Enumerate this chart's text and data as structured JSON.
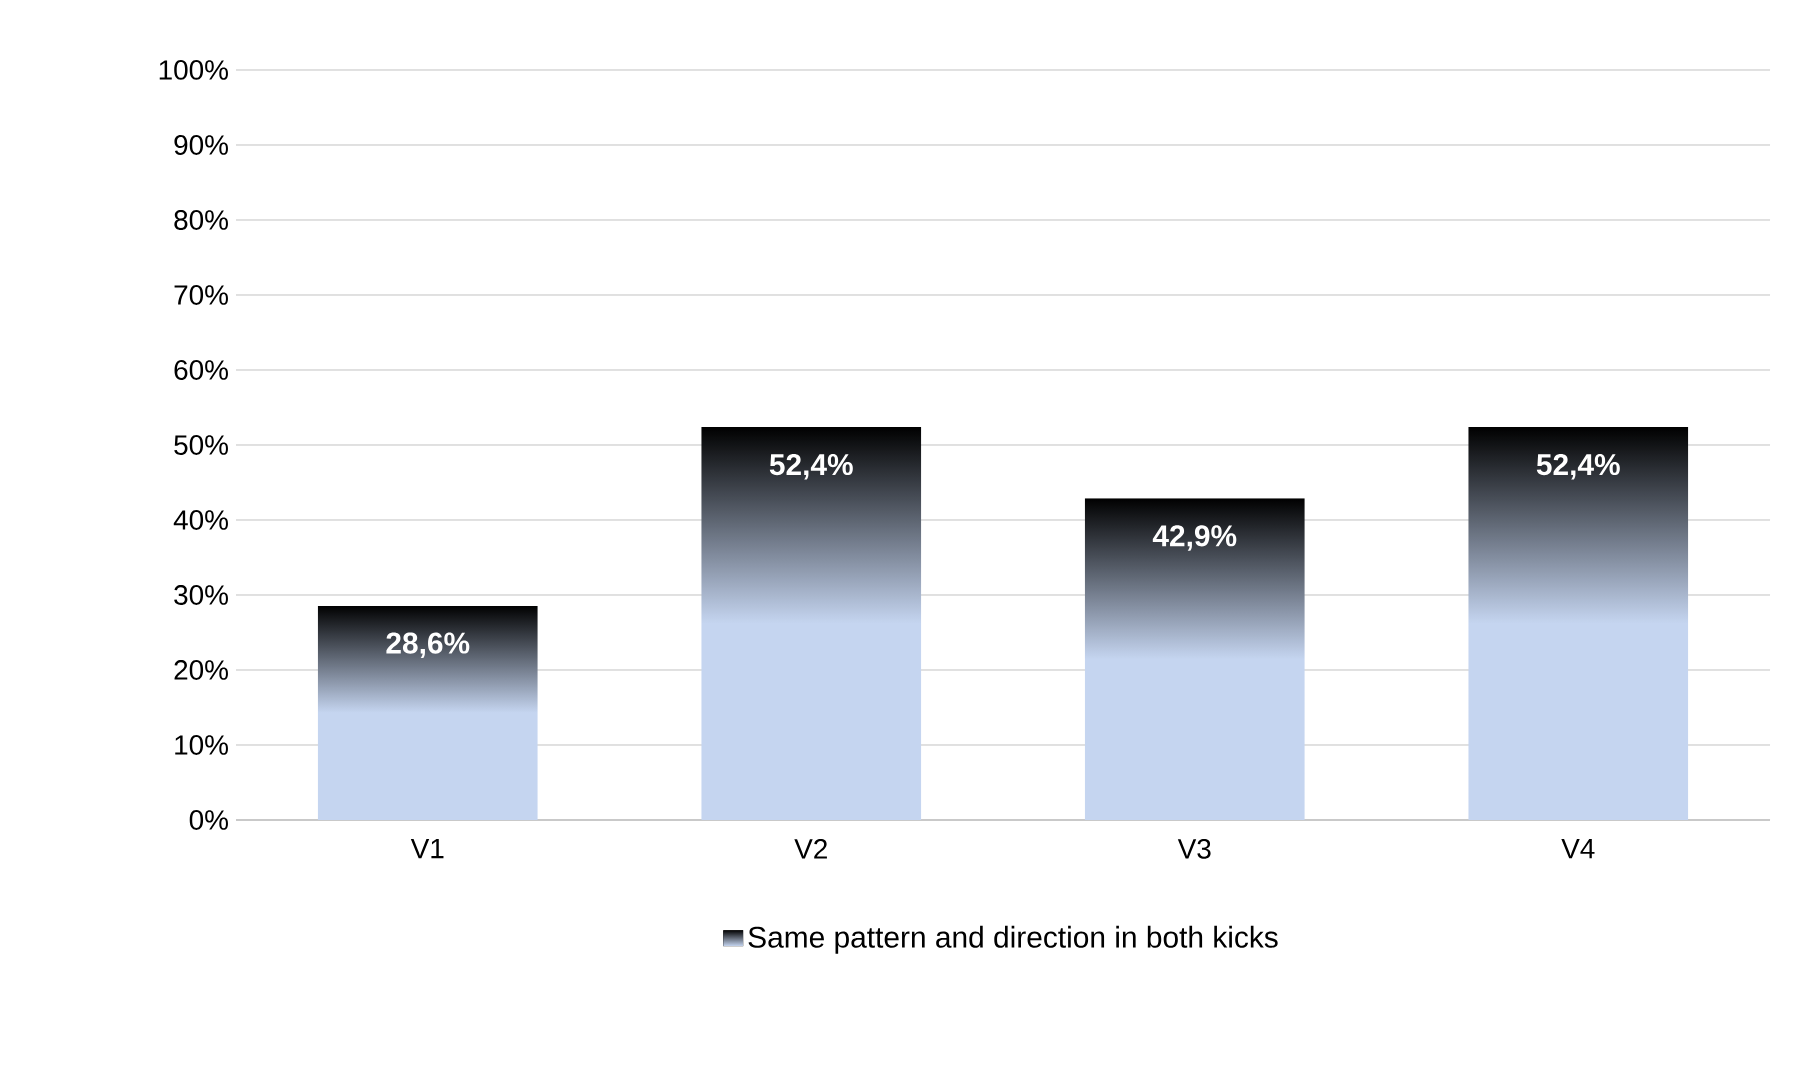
{
  "chart_data": {
    "type": "bar",
    "categories": [
      "V1",
      "V2",
      "V3",
      "V4"
    ],
    "series": [
      {
        "name": "Same pattern and direction in both kicks",
        "color": "#c5d5f0",
        "values": [
          28.6,
          52.4,
          42.9,
          52.4
        ],
        "value_labels": [
          "28,6%",
          "52,4%",
          "42,9%",
          "52,4%"
        ]
      }
    ],
    "ylim": [
      0,
      100
    ],
    "yticks": [
      {
        "value": 0,
        "label": "0%"
      },
      {
        "value": 10,
        "label": "10%"
      },
      {
        "value": 20,
        "label": "20%"
      },
      {
        "value": 30,
        "label": "30%"
      },
      {
        "value": 40,
        "label": "40%"
      },
      {
        "value": 50,
        "label": "50%"
      },
      {
        "value": 60,
        "label": "60%"
      },
      {
        "value": 70,
        "label": "70%"
      },
      {
        "value": 80,
        "label": "80%"
      },
      {
        "value": 90,
        "label": "90%"
      },
      {
        "value": 100,
        "label": "100%"
      }
    ],
    "grid": "y",
    "legend": "bottom"
  }
}
